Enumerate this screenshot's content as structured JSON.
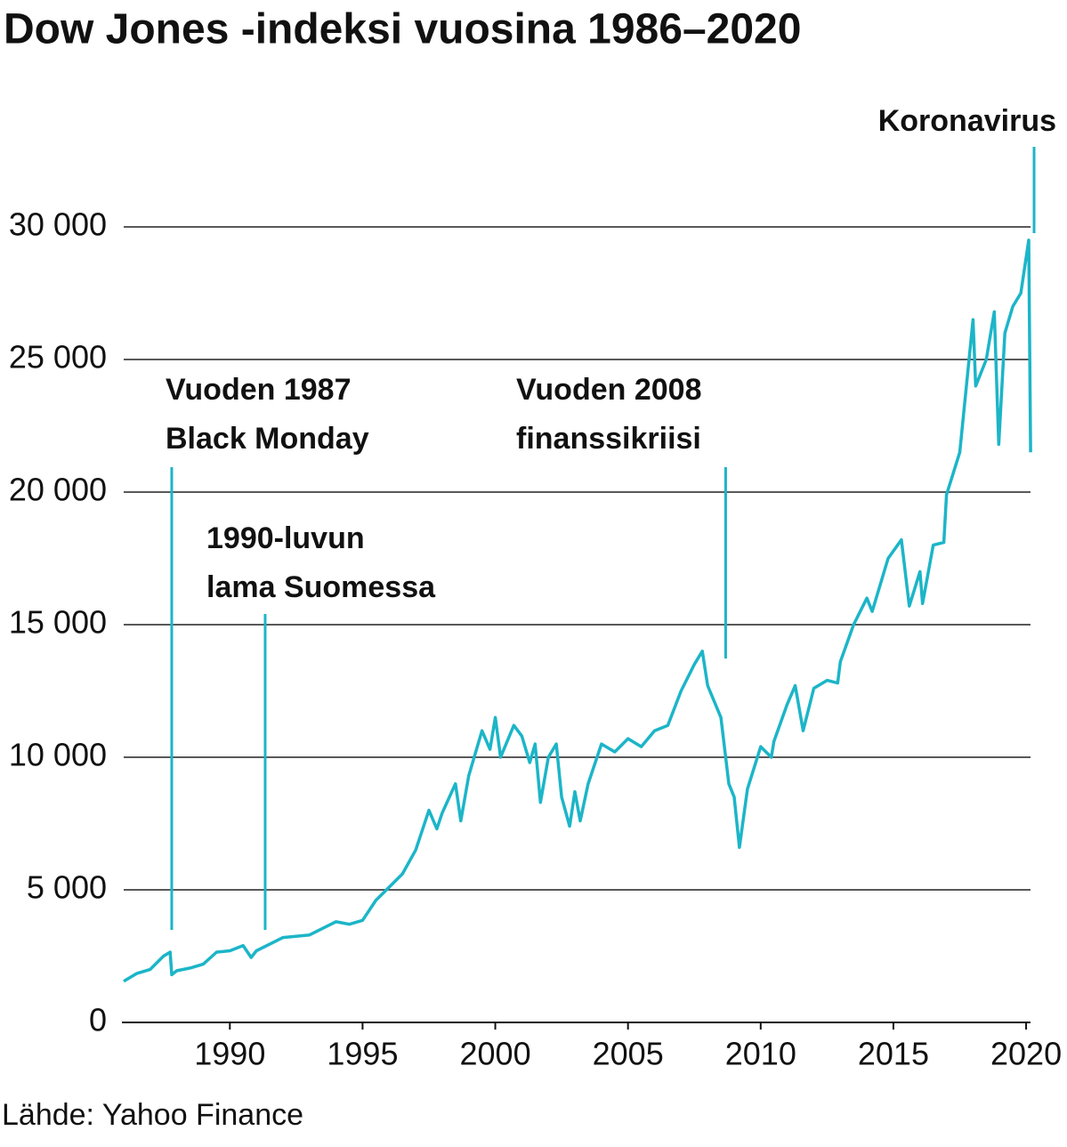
{
  "chart_data": {
    "type": "line",
    "title": "Dow Jones -indeksi vuosina 1986–2020",
    "source": "Lähde: Yahoo Finance",
    "color": "#1cb5c8",
    "grid": true,
    "xlim": [
      1986,
      2020.3
    ],
    "xticks": [
      1990,
      1995,
      2000,
      2005,
      2010,
      2015,
      2020
    ],
    "ylim": [
      0,
      32000
    ],
    "yticks": [
      0,
      {
        "value": 5000,
        "label": "5 000"
      },
      {
        "value": 10000,
        "label": "10 000"
      },
      {
        "value": 15000,
        "label": "15 000"
      },
      {
        "value": 20000,
        "label": "20 000"
      },
      {
        "value": 25000,
        "label": "25 000"
      },
      {
        "value": 30000,
        "label": "30 000"
      }
    ],
    "x": [
      1986.0,
      1986.5,
      1987.0,
      1987.5,
      1987.75,
      1987.81,
      1988.0,
      1988.5,
      1989.0,
      1989.5,
      1990.0,
      1990.5,
      1990.8,
      1991.0,
      1991.5,
      1992.0,
      1993.0,
      1994.0,
      1994.5,
      1995.0,
      1995.5,
      1996.0,
      1996.5,
      1997.0,
      1997.5,
      1997.8,
      1998.0,
      1998.5,
      1998.7,
      1999.0,
      1999.5,
      1999.8,
      2000.0,
      2000.2,
      2000.7,
      2001.0,
      2001.3,
      2001.5,
      2001.7,
      2002.0,
      2002.3,
      2002.5,
      2002.8,
      2003.0,
      2003.2,
      2003.5,
      2004.0,
      2004.5,
      2005.0,
      2005.5,
      2006.0,
      2006.5,
      2007.0,
      2007.5,
      2007.8,
      2008.0,
      2008.5,
      2008.8,
      2009.0,
      2009.2,
      2009.5,
      2010.0,
      2010.4,
      2010.5,
      2011.0,
      2011.3,
      2011.6,
      2012.0,
      2012.5,
      2012.9,
      2013.0,
      2013.5,
      2014.0,
      2014.2,
      2014.8,
      2015.3,
      2015.6,
      2016.0,
      2016.1,
      2016.5,
      2016.9,
      2017.0,
      2017.5,
      2018.0,
      2018.1,
      2018.5,
      2018.8,
      2018.97,
      2019.2,
      2019.5,
      2019.8,
      2020.1,
      2020.17
    ],
    "values": [
      1550,
      1850,
      2000,
      2500,
      2650,
      1800,
      1950,
      2050,
      2200,
      2650,
      2700,
      2900,
      2450,
      2700,
      2950,
      3200,
      3300,
      3800,
      3700,
      3850,
      4600,
      5100,
      5600,
      6500,
      8000,
      7300,
      7900,
      9000,
      7600,
      9300,
      11000,
      10300,
      11500,
      10000,
      11200,
      10800,
      9800,
      10500,
      8300,
      10000,
      10500,
      8500,
      7400,
      8700,
      7600,
      9000,
      10500,
      10200,
      10700,
      10400,
      11000,
      11200,
      12500,
      13500,
      14000,
      12700,
      11500,
      9000,
      8500,
      6600,
      8800,
      10400,
      10000,
      10600,
      12000,
      12700,
      11000,
      12600,
      12900,
      12800,
      13600,
      15000,
      16000,
      15500,
      17500,
      18200,
      15700,
      17000,
      15800,
      18000,
      18100,
      19900,
      21500,
      26500,
      24000,
      25000,
      26800,
      21800,
      26000,
      27000,
      27500,
      29500,
      21500
    ],
    "annotations": [
      {
        "text": [
          "Vuoden 1987",
          "Black Monday"
        ],
        "x": 1987.81
      },
      {
        "text": [
          "1990-luvun",
          "lama Suomessa"
        ],
        "x": 1991.33
      },
      {
        "text": [
          "Vuoden 2008",
          "finanssikriisi"
        ],
        "x": 2008.68
      },
      {
        "text": [
          "Koronavirus"
        ],
        "x": 2020.3
      }
    ]
  }
}
